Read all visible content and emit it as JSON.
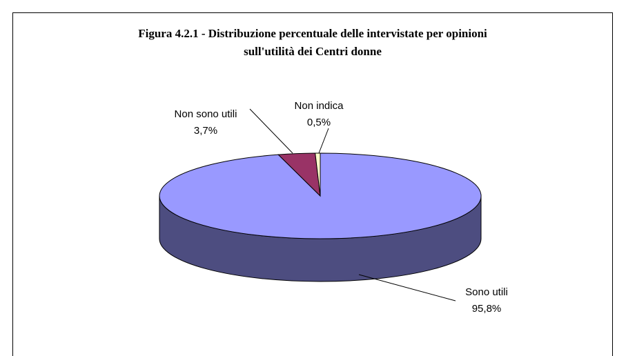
{
  "chart_data": {
    "type": "pie",
    "title": [
      "Figura 4.2.1 - Distribuzione percentuale delle intervistate per opinioni",
      "sull'utilità dei Centri donne"
    ],
    "categories": [
      "Sono utili",
      "Non sono utili",
      "Non indica"
    ],
    "values": [
      95.8,
      3.7,
      0.5
    ],
    "value_labels": [
      "95,8%",
      "3,7%",
      "0,5%"
    ],
    "colors": [
      "#9999ff",
      "#993366",
      "#ffffcc"
    ],
    "three_d": true
  }
}
